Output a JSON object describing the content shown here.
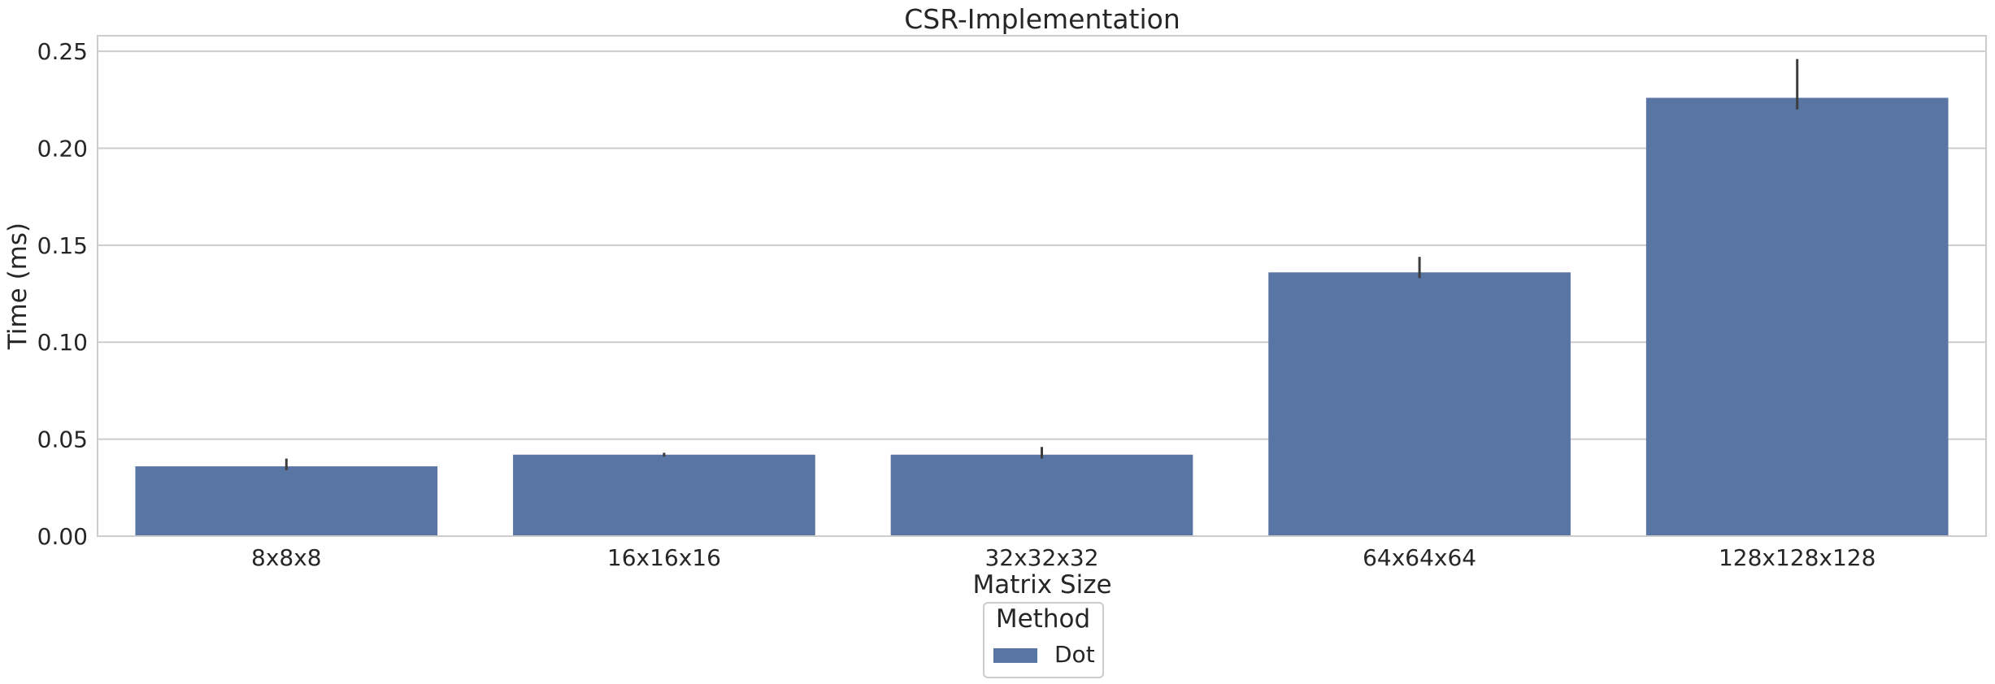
{
  "chart_data": {
    "type": "bar",
    "title": "CSR-Implementation",
    "xlabel": "Matrix Size",
    "ylabel": "Time (ms)",
    "categories": [
      "8x8x8",
      "16x16x16",
      "32x32x32",
      "64x64x64",
      "128x128x128"
    ],
    "series": [
      {
        "name": "Dot",
        "values": [
          0.036,
          0.042,
          0.042,
          0.136,
          0.226
        ],
        "error_low": [
          0.034,
          0.041,
          0.04,
          0.133,
          0.22
        ],
        "error_high": [
          0.04,
          0.043,
          0.046,
          0.144,
          0.246
        ],
        "color": "#5975a4"
      }
    ],
    "ylim": [
      0,
      0.258
    ],
    "yticks": [
      0.0,
      0.05,
      0.1,
      0.15,
      0.2,
      0.25
    ],
    "ytick_labels": [
      "0.00",
      "0.05",
      "0.10",
      "0.15",
      "0.20",
      "0.25"
    ],
    "grid": "horizontal",
    "legend": {
      "title": "Method",
      "entries": [
        "Dot"
      ],
      "placement": "bottom-center"
    },
    "colors": {
      "bar": "#5975a4",
      "error": "#3d3d3d",
      "grid": "#cccccc",
      "frame": "#cccccc",
      "text": "#262626"
    }
  }
}
